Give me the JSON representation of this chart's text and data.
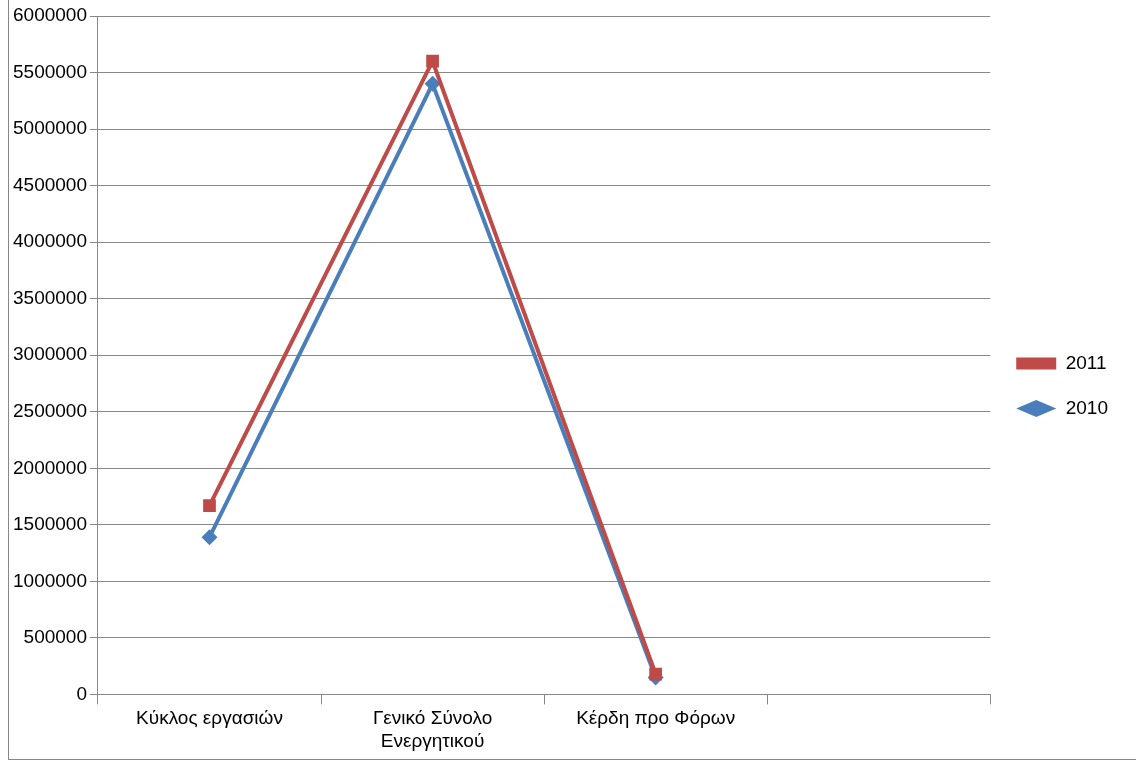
{
  "chart_data": {
    "type": "line",
    "categories": [
      "Κύκλος εργασιών",
      "Γενικό Σύνολο Ενεργητικού",
      "Κέρδη προ Φόρων",
      null
    ],
    "series": [
      {
        "name": "2010",
        "color": "#4a7ebb",
        "marker": "diamond",
        "values": [
          1390000,
          5400000,
          150000,
          null
        ]
      },
      {
        "name": "2011",
        "color": "#be4b48",
        "marker": "square",
        "values": [
          1670000,
          5600000,
          180000,
          null
        ]
      }
    ],
    "ylim": [
      0,
      6000000
    ],
    "yticks": [
      0,
      500000,
      1000000,
      1500000,
      2000000,
      2500000,
      3000000,
      3500000,
      4000000,
      4500000,
      5000000,
      5500000,
      6000000
    ],
    "grid": "y",
    "legend": "right",
    "line_style": "solid"
  }
}
